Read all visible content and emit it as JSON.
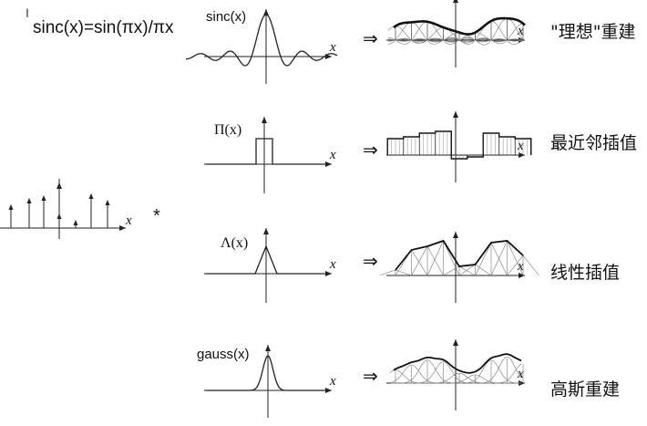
{
  "formula": "sinc(x)=sin(πx)/πx",
  "cursor_glyph": "I",
  "convolution_symbol": "*",
  "arrow_symbol": "⇒",
  "axis_variable": "x",
  "rows": [
    {
      "kernel": "sinc",
      "kernel_label": "sinc(x)",
      "method": "\"理想\"重建"
    },
    {
      "kernel": "box",
      "kernel_label": "Π(x)",
      "method": "最近邻插值"
    },
    {
      "kernel": "tent",
      "kernel_label": "Λ(x)",
      "method": "线性插值"
    },
    {
      "kernel": "gauss",
      "kernel_label": "gauss(x)",
      "method": "高斯重建"
    }
  ],
  "sample_values": [
    0.55,
    0.7,
    0.72,
    0.5,
    0.3,
    0.3,
    0.75,
    0.85,
    0.65
  ]
}
